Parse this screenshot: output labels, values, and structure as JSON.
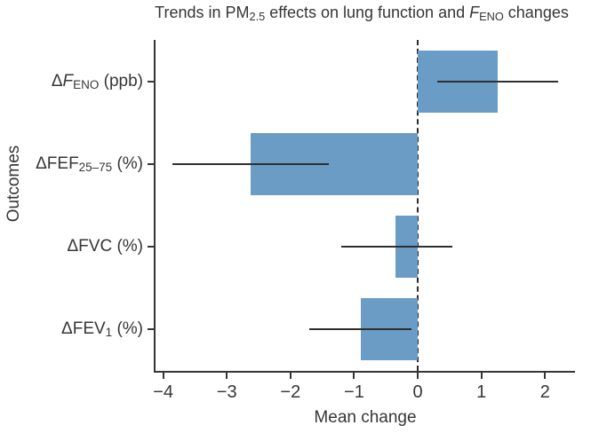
{
  "title_segments": [
    {
      "text": "Trends in PM"
    },
    {
      "text": "2.5",
      "style": "sub"
    },
    {
      "text": " effects on lung function and "
    },
    {
      "text": "F",
      "style": "italic"
    },
    {
      "text": "ENO",
      "style": "sub"
    },
    {
      "text": " changes"
    }
  ],
  "chart_data": {
    "type": "bar",
    "orientation": "horizontal",
    "title": "Trends in PM2.5 effects on lung function and FENO changes",
    "xlabel": "Mean change",
    "ylabel": "Outcomes",
    "xlim": [
      -4.12,
      2.47
    ],
    "grid": false,
    "legend": "none",
    "reference_line_x": 0,
    "bar_color": "#6a9cc6",
    "error_bar_color": "#2f2f2f",
    "axis_color": "#363636",
    "x_axis_ticks": [
      {
        "value": -4,
        "label": "−4"
      },
      {
        "value": -3,
        "label": "−3"
      },
      {
        "value": -2,
        "label": "−2"
      },
      {
        "value": -1,
        "label": "−1"
      },
      {
        "value": 0,
        "label": "0"
      },
      {
        "value": 1,
        "label": "1"
      },
      {
        "value": 2,
        "label": "2"
      }
    ],
    "categories": [
      "ΔFENO (ppb)",
      "ΔFEF25–75 (%)",
      "ΔFVC (%)",
      "ΔFEV1 (%)"
    ],
    "rows": [
      {
        "label_plain": "ΔFENO (ppb)",
        "label_segments": [
          {
            "text": "Δ"
          },
          {
            "text": "F",
            "style": "italic"
          },
          {
            "text": "ENO",
            "style": "sub"
          },
          {
            "text": " (ppb)"
          }
        ],
        "mean": 1.25,
        "ci_low": 0.3,
        "ci_high": 2.2
      },
      {
        "label_plain": "ΔFEF25–75 (%)",
        "label_segments": [
          {
            "text": "ΔFEF"
          },
          {
            "text": "25–75",
            "style": "sub"
          },
          {
            "text": " (%)"
          }
        ],
        "mean": -2.62,
        "ci_low": -3.85,
        "ci_high": -1.4
      },
      {
        "label_plain": "ΔFVC (%)",
        "label_segments": [
          {
            "text": "ΔFVC (%)"
          }
        ],
        "mean": -0.35,
        "ci_low": -1.2,
        "ci_high": 0.55
      },
      {
        "label_plain": "ΔFEV1 (%)",
        "label_segments": [
          {
            "text": "ΔFEV"
          },
          {
            "text": "1",
            "style": "sub"
          },
          {
            "text": " (%)"
          }
        ],
        "mean": -0.9,
        "ci_low": -1.7,
        "ci_high": -0.1
      }
    ]
  }
}
